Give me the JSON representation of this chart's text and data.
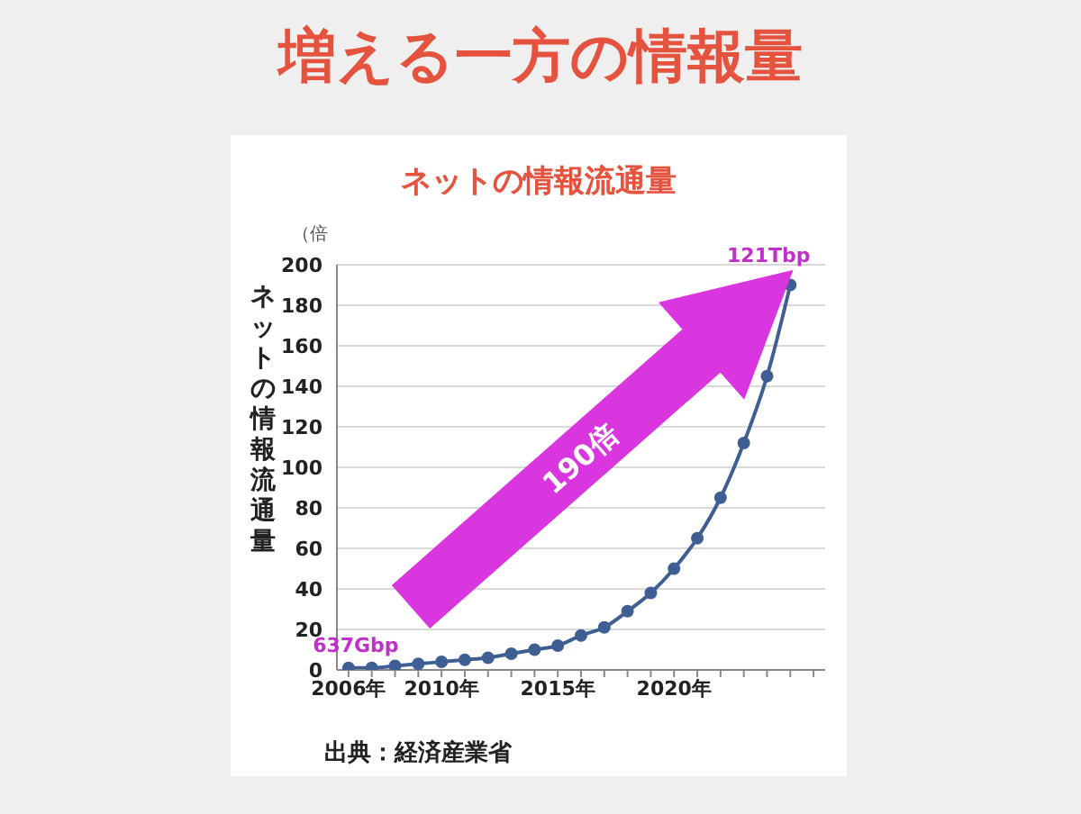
{
  "chart_data": {
    "type": "line",
    "title": "増える一方の情報量",
    "subtitle": "ネットの情報流通量",
    "ylabel": "ネットの情報流通量",
    "x": [
      2006,
      2007,
      2008,
      2009,
      2010,
      2011,
      2012,
      2013,
      2014,
      2015,
      2016,
      2017,
      2018,
      2019,
      2020,
      2021,
      2022,
      2023,
      2024,
      2025
    ],
    "series": [
      {
        "color": "#3f5f94",
        "values": [
          1,
          1,
          2,
          3,
          4,
          5,
          6,
          8,
          10,
          12,
          17,
          21,
          29,
          38,
          50,
          65,
          85,
          112,
          145,
          190
        ]
      }
    ],
    "xlim": [
      2005.5,
      2026.5
    ],
    "xticks": [
      {
        "value": 2006,
        "label": "2006年"
      },
      {
        "value": 2007,
        "label": null
      },
      {
        "value": 2008,
        "label": null
      },
      {
        "value": 2009,
        "label": null
      },
      {
        "value": 2010,
        "label": "2010年"
      },
      {
        "value": 2011,
        "label": null
      },
      {
        "value": 2012,
        "label": null
      },
      {
        "value": 2013,
        "label": null
      },
      {
        "value": 2014,
        "label": null
      },
      {
        "value": 2015,
        "label": "2015年"
      },
      {
        "value": 2016,
        "label": null
      },
      {
        "value": 2017,
        "label": null
      },
      {
        "value": 2018,
        "label": null
      },
      {
        "value": 2019,
        "label": null
      },
      {
        "value": 2020,
        "label": "2020年"
      },
      {
        "value": 2021,
        "label": null
      },
      {
        "value": 2022,
        "label": null
      },
      {
        "value": 2023,
        "label": null
      },
      {
        "value": 2024,
        "label": null
      },
      {
        "value": 2025,
        "label": null
      },
      {
        "value": 2026,
        "label": null
      }
    ],
    "ylim": [
      0,
      200
    ],
    "yticks": [
      0,
      20,
      40,
      60,
      80,
      100,
      120,
      140,
      160,
      180,
      200
    ],
    "grid": "y",
    "marker": "circle",
    "line_style": "solid",
    "legend": false,
    "annotations": [
      "（倍",
      {
        "text": "637Gbp",
        "x": 2006,
        "y": 1
      },
      {
        "text": "121Tbp",
        "x": 2025,
        "y": 190
      },
      "190倍",
      "出典：経済産業省"
    ]
  }
}
